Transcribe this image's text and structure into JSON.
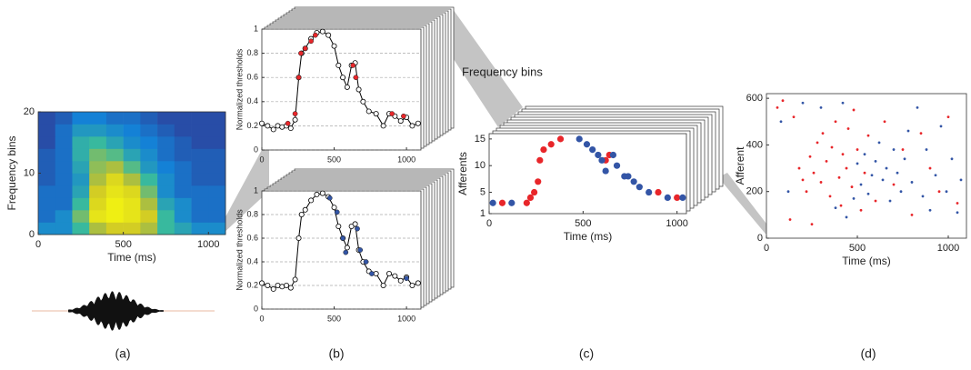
{
  "panel_labels": [
    "(a)",
    "(b)",
    "(c)",
    "(d)"
  ],
  "chart_data": [
    {
      "type": "heatmap",
      "xlabel": "Time (ms)",
      "ylabel": "Frequency bins",
      "xlim": [
        0,
        1100
      ],
      "ylim": [
        0,
        20
      ],
      "xticks": [
        0,
        500,
        1000
      ],
      "yticks": [
        0,
        10,
        20
      ],
      "xbins": [
        0,
        100,
        200,
        300,
        400,
        500,
        600,
        700,
        800,
        900,
        1000,
        1100
      ],
      "ybins": [
        0,
        2,
        4,
        6,
        8,
        10,
        12,
        14,
        16,
        18,
        20
      ],
      "values": [
        [
          0.3,
          0.3,
          0.5,
          0.7,
          0.8,
          0.8,
          0.7,
          0.5,
          0.4,
          0.3,
          0.3
        ],
        [
          0.2,
          0.3,
          0.6,
          0.9,
          0.95,
          0.9,
          0.8,
          0.5,
          0.3,
          0.2,
          0.2
        ],
        [
          0.2,
          0.2,
          0.5,
          0.85,
          0.95,
          0.9,
          0.7,
          0.4,
          0.3,
          0.2,
          0.2
        ],
        [
          0.2,
          0.2,
          0.4,
          0.8,
          0.9,
          0.85,
          0.6,
          0.3,
          0.2,
          0.2,
          0.2
        ],
        [
          0.15,
          0.2,
          0.35,
          0.7,
          0.85,
          0.7,
          0.5,
          0.3,
          0.2,
          0.15,
          0.15
        ],
        [
          0.15,
          0.2,
          0.4,
          0.65,
          0.7,
          0.55,
          0.35,
          0.25,
          0.2,
          0.15,
          0.15
        ],
        [
          0.15,
          0.2,
          0.45,
          0.6,
          0.55,
          0.4,
          0.3,
          0.2,
          0.15,
          0.15,
          0.15
        ],
        [
          0.1,
          0.2,
          0.45,
          0.5,
          0.4,
          0.3,
          0.25,
          0.2,
          0.15,
          0.1,
          0.1
        ],
        [
          0.1,
          0.2,
          0.35,
          0.35,
          0.3,
          0.25,
          0.2,
          0.15,
          0.1,
          0.1,
          0.1
        ],
        [
          0.1,
          0.15,
          0.25,
          0.25,
          0.2,
          0.2,
          0.15,
          0.1,
          0.1,
          0.1,
          0.1
        ]
      ]
    },
    {
      "type": "line",
      "ylabel": "Normalized thresholds",
      "grid": true,
      "color": "#000000",
      "xlim": [
        0,
        1100
      ],
      "ylim": [
        0,
        1
      ],
      "xticks": [
        0,
        500,
        1000
      ],
      "yticks": [
        0,
        0.2,
        0.4,
        0.6,
        0.8,
        1
      ],
      "x": [
        0,
        40,
        80,
        110,
        140,
        170,
        200,
        230,
        255,
        275,
        300,
        340,
        380,
        420,
        460,
        500,
        530,
        560,
        590,
        620,
        645,
        670,
        700,
        740,
        790,
        840,
        880,
        920,
        960,
        1000,
        1040,
        1080
      ],
      "values": [
        0.22,
        0.2,
        0.17,
        0.2,
        0.19,
        0.2,
        0.18,
        0.25,
        0.6,
        0.8,
        0.84,
        0.92,
        0.97,
        0.98,
        0.95,
        0.86,
        0.7,
        0.6,
        0.52,
        0.7,
        0.72,
        0.5,
        0.4,
        0.32,
        0.3,
        0.2,
        0.3,
        0.28,
        0.24,
        0.27,
        0.2,
        0.22
      ],
      "highlight": {
        "color": "#e8262a",
        "x": [
          180,
          230,
          255,
          270,
          300,
          340,
          370,
          630,
          650,
          900,
          980
        ],
        "values": [
          0.22,
          0.3,
          0.6,
          0.8,
          0.84,
          0.9,
          0.95,
          0.7,
          0.6,
          0.3,
          0.28
        ]
      }
    },
    {
      "type": "line",
      "ylabel": "Normalized thresholds",
      "grid": true,
      "color": "#000000",
      "xlim": [
        0,
        1100
      ],
      "ylim": [
        0,
        1
      ],
      "xticks": [
        0,
        500,
        1000
      ],
      "yticks": [
        0,
        0.2,
        0.4,
        0.6,
        0.8,
        1
      ],
      "x": [
        0,
        40,
        80,
        110,
        140,
        170,
        200,
        230,
        255,
        275,
        300,
        340,
        380,
        420,
        460,
        500,
        530,
        560,
        590,
        620,
        645,
        670,
        700,
        740,
        790,
        840,
        880,
        920,
        960,
        1000,
        1040,
        1080
      ],
      "values": [
        0.22,
        0.2,
        0.17,
        0.2,
        0.19,
        0.2,
        0.18,
        0.25,
        0.6,
        0.8,
        0.84,
        0.92,
        0.97,
        0.98,
        0.95,
        0.86,
        0.7,
        0.6,
        0.52,
        0.7,
        0.72,
        0.5,
        0.4,
        0.32,
        0.3,
        0.2,
        0.3,
        0.28,
        0.24,
        0.27,
        0.2,
        0.22
      ],
      "highlight": {
        "color": "#3355a6",
        "x": [
          470,
          520,
          560,
          580,
          660,
          680,
          720,
          760,
          1000
        ],
        "values": [
          0.94,
          0.82,
          0.6,
          0.48,
          0.68,
          0.5,
          0.4,
          0.3,
          0.26
        ]
      }
    },
    {
      "type": "scatter",
      "annotation": "Frequency bins",
      "xlabel": "Time (ms)",
      "ylabel": "Afferents",
      "xlim": [
        0,
        1050
      ],
      "ylim": [
        1,
        16
      ],
      "xticks": [
        0,
        500,
        1000
      ],
      "yticks": [
        1,
        5,
        10,
        15
      ],
      "series": [
        {
          "color": "#e8262a",
          "x": [
            70,
            200,
            220,
            240,
            260,
            270,
            290,
            330,
            380,
            620,
            640,
            900,
            1000
          ],
          "values": [
            3,
            3,
            4,
            5,
            7,
            11,
            13,
            14,
            15,
            11,
            12,
            5,
            4
          ]
        },
        {
          "color": "#3355a6",
          "x": [
            20,
            120,
            480,
            520,
            550,
            580,
            600,
            620,
            660,
            680,
            720,
            740,
            770,
            800,
            850,
            950,
            1030
          ],
          "values": [
            3,
            3,
            15,
            14,
            13,
            12,
            11,
            9,
            12,
            10,
            8,
            8,
            7,
            6,
            5,
            4,
            4
          ]
        }
      ]
    },
    {
      "type": "scatter",
      "xlabel": "Time (ms)",
      "ylabel": "Afferent",
      "xlim": [
        0,
        1100
      ],
      "ylim": [
        0,
        620
      ],
      "xticks": [
        0,
        500,
        1000
      ],
      "yticks": [
        0,
        200,
        400,
        600
      ],
      "series": [
        {
          "color": "#e8262a",
          "x": [
            60,
            90,
            150,
            180,
            200,
            220,
            240,
            260,
            280,
            300,
            310,
            330,
            350,
            360,
            380,
            400,
            410,
            420,
            440,
            450,
            470,
            480,
            500,
            520,
            540,
            560,
            600,
            650,
            700,
            750,
            800,
            850,
            900,
            950,
            1000,
            1050,
            250,
            130
          ],
          "values": [
            560,
            590,
            520,
            300,
            250,
            200,
            350,
            280,
            410,
            240,
            450,
            330,
            180,
            390,
            500,
            260,
            140,
            360,
            300,
            470,
            220,
            550,
            380,
            120,
            280,
            440,
            160,
            500,
            230,
            380,
            100,
            450,
            300,
            200,
            520,
            150,
            60,
            80
          ]
        },
        {
          "color": "#3355a6",
          "x": [
            80,
            120,
            200,
            300,
            420,
            480,
            500,
            520,
            540,
            560,
            580,
            600,
            620,
            640,
            660,
            680,
            700,
            720,
            740,
            760,
            780,
            800,
            830,
            860,
            880,
            900,
            930,
            960,
            990,
            1020,
            1050,
            1070,
            380,
            440
          ],
          "values": [
            500,
            200,
            580,
            560,
            580,
            170,
            320,
            230,
            360,
            190,
            270,
            330,
            410,
            250,
            300,
            160,
            380,
            280,
            200,
            340,
            460,
            240,
            560,
            180,
            380,
            120,
            270,
            480,
            200,
            340,
            110,
            250,
            130,
            90
          ]
        }
      ]
    }
  ]
}
